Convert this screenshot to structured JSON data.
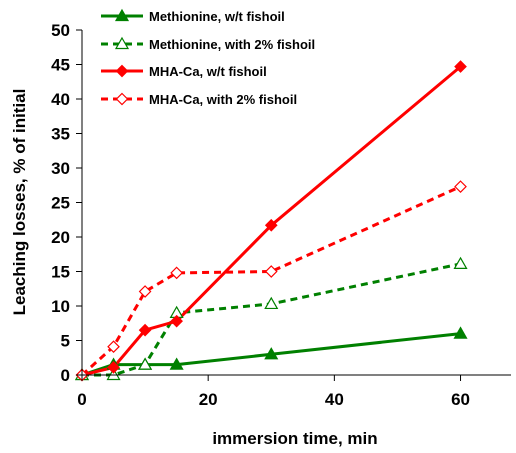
{
  "chart_data": {
    "type": "line",
    "xlabel": "immersion time, min",
    "ylabel": "Leaching losses, % of initial",
    "xlim": [
      0,
      68
    ],
    "ylim": [
      0,
      50
    ],
    "xticks": [
      0,
      20,
      40,
      60
    ],
    "yticks": [
      0,
      5,
      10,
      15,
      20,
      25,
      30,
      35,
      40,
      45,
      50
    ],
    "grid": false,
    "legend_position": "top-left",
    "series": [
      {
        "name": "Methionine, w/t fishoil",
        "color": "#008000",
        "dash": "solid",
        "marker": "triangle",
        "marker_filled": true,
        "x": [
          0,
          5,
          10,
          15,
          30,
          60
        ],
        "y": [
          0,
          1.5,
          1.5,
          1.5,
          3.0,
          6.0
        ]
      },
      {
        "name": "Methionine, with 2% fishoil",
        "color": "#008000",
        "dash": "dashed",
        "marker": "triangle",
        "marker_filled": false,
        "x": [
          0,
          5,
          10,
          15,
          30,
          60
        ],
        "y": [
          0,
          0,
          1.5,
          9.0,
          10.3,
          16.1
        ]
      },
      {
        "name": "MHA-Ca, w/t fishoil",
        "color": "#ff0000",
        "dash": "solid",
        "marker": "diamond",
        "marker_filled": true,
        "x": [
          0,
          5,
          10,
          15,
          30,
          60
        ],
        "y": [
          0,
          1.1,
          6.5,
          7.8,
          21.7,
          44.7
        ]
      },
      {
        "name": "MHA-Ca, with 2% fishoil",
        "color": "#ff0000",
        "dash": "dashed",
        "marker": "diamond",
        "marker_filled": false,
        "x": [
          0,
          5,
          10,
          15,
          30,
          60
        ],
        "y": [
          0,
          4.1,
          12.1,
          14.8,
          15.0,
          27.3
        ]
      }
    ]
  }
}
